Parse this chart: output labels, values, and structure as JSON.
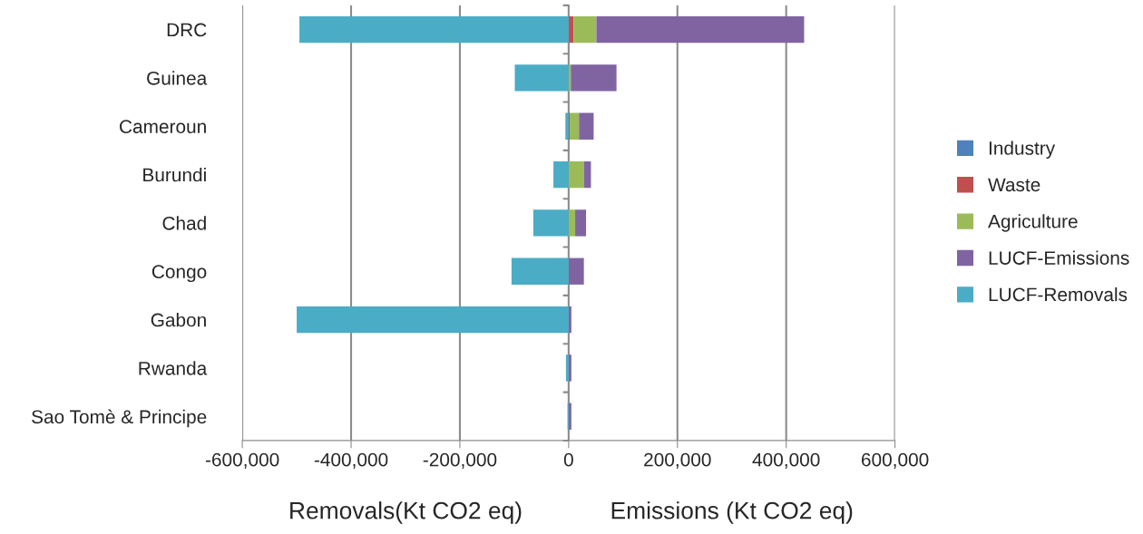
{
  "chart_data": {
    "type": "bar",
    "orientation": "horizontal",
    "stacked": true,
    "categories": [
      "DRC",
      "Guinea",
      "Cameroun",
      "Burundi",
      "Chad",
      "Congo",
      "Gabon",
      "Rwanda",
      "Sao Tomè & Principe"
    ],
    "series": [
      {
        "name": "Industry",
        "color": "#4f81bd",
        "values": [
          0,
          0,
          0,
          0,
          0,
          0,
          0,
          0,
          0
        ]
      },
      {
        "name": "Waste",
        "color": "#c0504d",
        "values": [
          9000,
          0,
          2000,
          0,
          0,
          0,
          0,
          0,
          0
        ]
      },
      {
        "name": "Agriculture",
        "color": "#9bbb59",
        "values": [
          42000,
          4000,
          17000,
          28000,
          12000,
          0,
          0,
          0,
          0
        ]
      },
      {
        "name": "LUCF-Emissions",
        "color": "#8064a2",
        "values": [
          382000,
          84000,
          27000,
          13000,
          20000,
          28000,
          5000,
          5000,
          5000
        ]
      },
      {
        "name": "LUCF-Removals",
        "color": "#4bacc6",
        "values": [
          -495000,
          -99000,
          -6000,
          -28000,
          -65000,
          -105000,
          -500000,
          -5000,
          -2000
        ]
      }
    ],
    "xlim": [
      -600000,
      600000
    ],
    "xticks": [
      {
        "value": -600000,
        "label": "-600,000"
      },
      {
        "value": -400000,
        "label": "-400,000"
      },
      {
        "value": -200000,
        "label": "-200,000"
      },
      0,
      {
        "value": 200000,
        "label": "200,000"
      },
      {
        "value": 400000,
        "label": "400,000"
      },
      {
        "value": 600000,
        "label": "600,000"
      }
    ],
    "grid": "x",
    "legend": "right",
    "annotations": [
      "Removals(Kt CO2 eq)",
      "Emissions (Kt CO2 eq)"
    ]
  }
}
